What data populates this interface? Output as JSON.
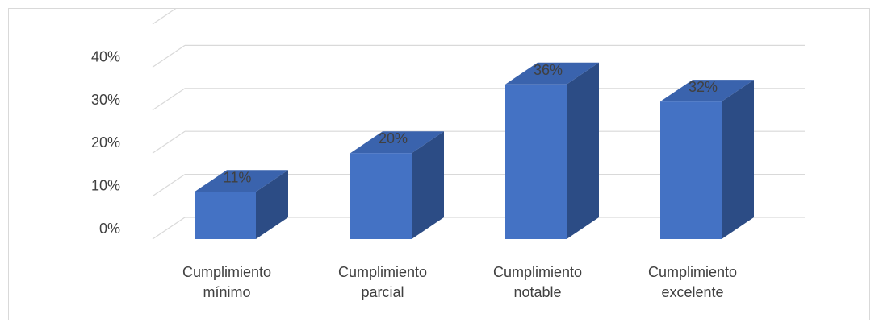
{
  "chart_data": {
    "type": "bar",
    "title": "",
    "xlabel": "",
    "ylabel": "",
    "categories": [
      [
        "Cumplimiento",
        "mínimo"
      ],
      [
        "Cumplimiento",
        "parcial"
      ],
      [
        "Cumplimiento",
        "notable"
      ],
      [
        "Cumplimiento",
        "excelente"
      ]
    ],
    "values": [
      11,
      20,
      36,
      32
    ],
    "value_labels": [
      "11%",
      "20%",
      "36%",
      "32%"
    ],
    "ylim": [
      0,
      40
    ],
    "y_ticks": [
      {
        "value": 0,
        "label": "0%"
      },
      {
        "value": 10,
        "label": "10%"
      },
      {
        "value": 20,
        "label": "20%"
      },
      {
        "value": 30,
        "label": "30%"
      },
      {
        "value": 40,
        "label": "40%"
      }
    ],
    "style": "3d-column",
    "grid": true,
    "legend": "none",
    "colors": {
      "front": "#4472C4",
      "side": "#2C4C85",
      "top": "#3A63AD",
      "grid": "#d9d9d9",
      "text": "#404040"
    }
  }
}
